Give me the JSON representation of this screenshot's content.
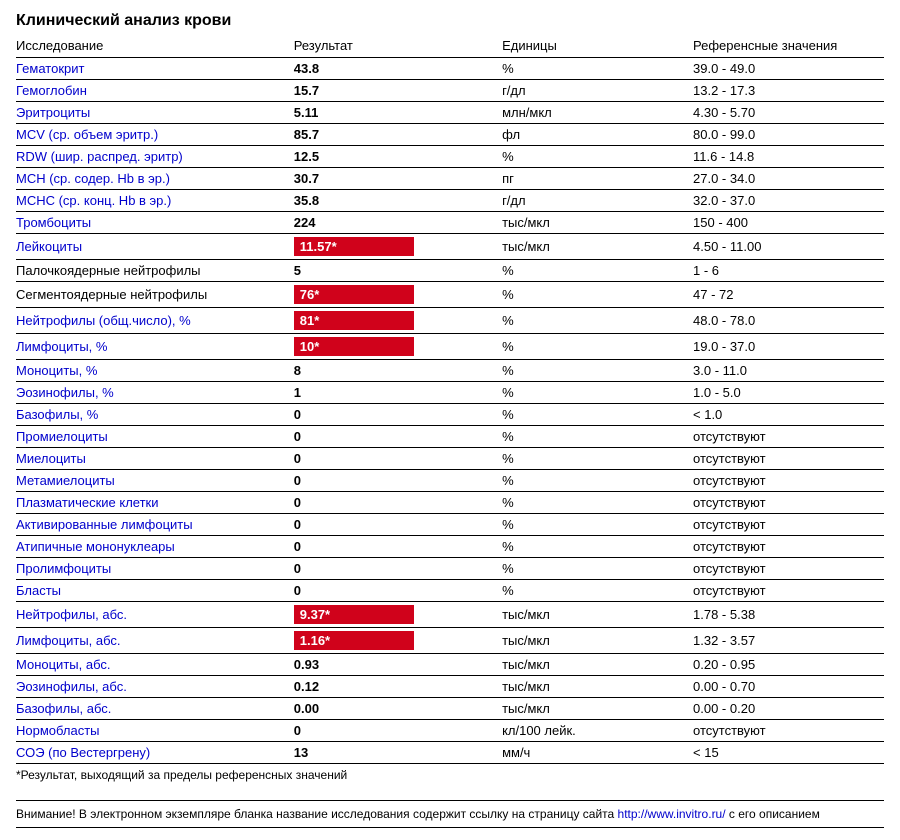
{
  "title": "Клинический анализ крови",
  "columns": {
    "param": "Исследование",
    "result": "Результат",
    "unit": "Единицы",
    "ref": "Референсные значения"
  },
  "rows": [
    {
      "param": "Гематокрит",
      "link": true,
      "result": "43.8",
      "flag": false,
      "unit": "%",
      "ref": "39.0 - 49.0"
    },
    {
      "param": "Гемоглобин",
      "link": true,
      "result": "15.7",
      "flag": false,
      "unit": "г/дл",
      "ref": "13.2 - 17.3"
    },
    {
      "param": "Эритроциты",
      "link": true,
      "result": "5.11",
      "flag": false,
      "unit": "млн/мкл",
      "ref": "4.30 - 5.70"
    },
    {
      "param": "MCV (ср. объем эритр.)",
      "link": true,
      "result": "85.7",
      "flag": false,
      "unit": "фл",
      "ref": "80.0 - 99.0"
    },
    {
      "param": "RDW (шир. распред. эритр)",
      "link": true,
      "result": "12.5",
      "flag": false,
      "unit": "%",
      "ref": "11.6 - 14.8"
    },
    {
      "param": "MCH (ср. содер. Hb в эр.)",
      "link": true,
      "result": "30.7",
      "flag": false,
      "unit": "пг",
      "ref": "27.0 - 34.0"
    },
    {
      "param": "MCHC (ср. конц. Hb в эр.)",
      "link": true,
      "result": "35.8",
      "flag": false,
      "unit": "г/дл",
      "ref": "32.0 - 37.0"
    },
    {
      "param": "Тромбоциты",
      "link": true,
      "result": "224",
      "flag": false,
      "unit": "тыс/мкл",
      "ref": "150 - 400"
    },
    {
      "param": "Лейкоциты",
      "link": true,
      "result": "11.57*",
      "flag": true,
      "unit": "тыс/мкл",
      "ref": "4.50 - 11.00"
    },
    {
      "param": "Палочкоядерные нейтрофилы",
      "link": false,
      "result": "5",
      "flag": false,
      "unit": "%",
      "ref": "1 - 6"
    },
    {
      "param": "Сегментоядерные нейтрофилы",
      "link": false,
      "result": "76*",
      "flag": true,
      "unit": "%",
      "ref": "47 - 72"
    },
    {
      "param": "Нейтрофилы (общ.число), %",
      "link": true,
      "result": "81*",
      "flag": true,
      "unit": "%",
      "ref": "48.0 - 78.0"
    },
    {
      "param": "Лимфоциты, %",
      "link": true,
      "result": "10*",
      "flag": true,
      "unit": "%",
      "ref": "19.0 - 37.0"
    },
    {
      "param": "Моноциты, %",
      "link": true,
      "result": "8",
      "flag": false,
      "unit": "%",
      "ref": "3.0 - 11.0"
    },
    {
      "param": "Эозинофилы, %",
      "link": true,
      "result": "1",
      "flag": false,
      "unit": "%",
      "ref": "1.0 - 5.0"
    },
    {
      "param": "Базофилы, %",
      "link": true,
      "result": "0",
      "flag": false,
      "unit": "%",
      "ref": "< 1.0"
    },
    {
      "param": "Промиелоциты",
      "link": true,
      "result": "0",
      "flag": false,
      "unit": "%",
      "ref": "отсутствуют"
    },
    {
      "param": "Миелоциты",
      "link": true,
      "result": "0",
      "flag": false,
      "unit": "%",
      "ref": "отсутствуют"
    },
    {
      "param": "Метамиелоциты",
      "link": true,
      "result": "0",
      "flag": false,
      "unit": "%",
      "ref": "отсутствуют"
    },
    {
      "param": "Плазматические клетки",
      "link": true,
      "result": "0",
      "flag": false,
      "unit": "%",
      "ref": "отсутствуют"
    },
    {
      "param": "Активированные лимфоциты",
      "link": true,
      "result": "0",
      "flag": false,
      "unit": "%",
      "ref": "отсутствуют"
    },
    {
      "param": "Атипичные мононуклеары",
      "link": true,
      "result": "0",
      "flag": false,
      "unit": "%",
      "ref": "отсутствуют"
    },
    {
      "param": "Пролимфоциты",
      "link": true,
      "result": "0",
      "flag": false,
      "unit": "%",
      "ref": "отсутствуют"
    },
    {
      "param": "Бласты",
      "link": true,
      "result": "0",
      "flag": false,
      "unit": "%",
      "ref": "отсутствуют"
    },
    {
      "param": "Нейтрофилы, абс.",
      "link": true,
      "result": "9.37*",
      "flag": true,
      "unit": "тыс/мкл",
      "ref": "1.78 - 5.38"
    },
    {
      "param": "Лимфоциты, абс.",
      "link": true,
      "result": "1.16*",
      "flag": true,
      "unit": "тыс/мкл",
      "ref": "1.32 - 3.57"
    },
    {
      "param": "Моноциты, абс.",
      "link": true,
      "result": "0.93",
      "flag": false,
      "unit": "тыс/мкл",
      "ref": "0.20 - 0.95"
    },
    {
      "param": "Эозинофилы, абс.",
      "link": true,
      "result": "0.12",
      "flag": false,
      "unit": "тыс/мкл",
      "ref": "0.00 - 0.70"
    },
    {
      "param": "Базофилы, абс.",
      "link": true,
      "result": "0.00",
      "flag": false,
      "unit": "тыс/мкл",
      "ref": "0.00 - 0.20"
    },
    {
      "param": "Нормобласты",
      "link": true,
      "result": "0",
      "flag": false,
      "unit": "кл/100 лейк.",
      "ref": "отсутствуют"
    },
    {
      "param": "СОЭ (по Вестергрену)",
      "link": true,
      "result": "13",
      "flag": false,
      "unit": "мм/ч",
      "ref": "< 15"
    }
  ],
  "footnote": "*Результат, выходящий за пределы референсных значений",
  "notice_prefix": "Внимание! В электронном экземпляре бланка название исследования содержит ссылку на страницу сайта ",
  "notice_link": "http://www.invitro.ru/",
  "notice_suffix": " с его описанием",
  "colors": {
    "link": "#0000cc",
    "flag_bg": "#d0021b",
    "flag_text": "#ffffff",
    "border": "#000000",
    "text": "#000000"
  }
}
